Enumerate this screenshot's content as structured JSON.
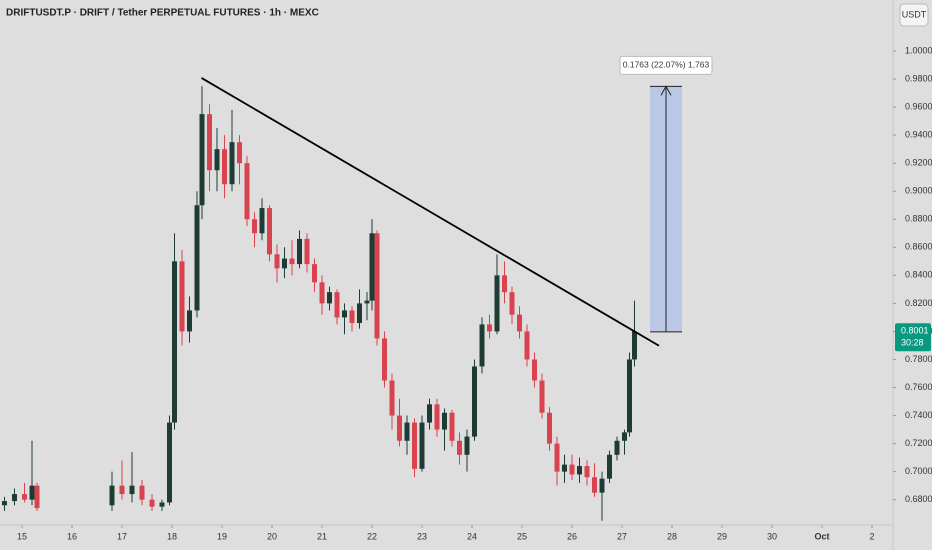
{
  "chart_data": {
    "type": "candlestick",
    "title": "DRIFTUSDT.P · DRIFT / Tether PERPETUAL FUTURES · 1h · MEXC",
    "currency": "USDT",
    "up_color": "#1f3b35",
    "down_color": "#d9434f",
    "x": [
      14.65,
      14.85,
      15.05,
      15.2,
      15.3,
      16.8,
      17.0,
      17.2,
      17.4,
      17.6,
      17.8,
      17.95,
      18.05,
      18.2,
      18.35,
      18.5,
      18.6,
      18.75,
      18.9,
      19.05,
      19.2,
      19.35,
      19.5,
      19.65,
      19.8,
      19.95,
      20.1,
      20.25,
      20.4,
      20.55,
      20.7,
      20.85,
      21.0,
      21.15,
      21.3,
      21.45,
      21.6,
      21.75,
      21.9,
      22.0,
      22.1,
      22.25,
      22.4,
      22.55,
      22.7,
      22.85,
      23.0,
      23.15,
      23.3,
      23.45,
      23.6,
      23.75,
      23.9,
      24.05,
      24.2,
      24.35,
      24.5,
      24.65,
      24.8,
      24.95,
      25.1,
      25.25,
      25.4,
      25.55,
      25.7,
      25.85,
      26.0,
      26.15,
      26.3,
      26.45,
      26.6,
      26.75,
      26.9,
      27.05,
      27.15,
      27.25
    ],
    "open": [
      0.676,
      0.679,
      0.684,
      0.68,
      0.69,
      0.676,
      0.69,
      0.684,
      0.69,
      0.68,
      0.675,
      0.678,
      0.735,
      0.85,
      0.8,
      0.815,
      0.89,
      0.955,
      0.915,
      0.93,
      0.905,
      0.935,
      0.92,
      0.88,
      0.87,
      0.888,
      0.855,
      0.845,
      0.852,
      0.848,
      0.866,
      0.848,
      0.835,
      0.82,
      0.828,
      0.81,
      0.815,
      0.806,
      0.82,
      0.822,
      0.87,
      0.795,
      0.765,
      0.74,
      0.722,
      0.735,
      0.702,
      0.735,
      0.748,
      0.73,
      0.742,
      0.722,
      0.712,
      0.725,
      0.775,
      0.805,
      0.8,
      0.84,
      0.828,
      0.812,
      0.8,
      0.78,
      0.765,
      0.742,
      0.72,
      0.7,
      0.705,
      0.698,
      0.704,
      0.696,
      0.685,
      0.695,
      0.712,
      0.722,
      0.728,
      0.78
    ],
    "high": [
      0.682,
      0.688,
      0.692,
      0.722,
      0.692,
      0.7,
      0.708,
      0.714,
      0.694,
      0.684,
      0.68,
      0.74,
      0.87,
      0.858,
      0.825,
      0.9,
      0.975,
      0.962,
      0.945,
      0.94,
      0.958,
      0.94,
      0.925,
      0.885,
      0.895,
      0.89,
      0.862,
      0.86,
      0.865,
      0.872,
      0.87,
      0.852,
      0.84,
      0.832,
      0.83,
      0.82,
      0.818,
      0.83,
      0.828,
      0.88,
      0.872,
      0.8,
      0.77,
      0.752,
      0.74,
      0.738,
      0.74,
      0.752,
      0.752,
      0.745,
      0.744,
      0.728,
      0.73,
      0.78,
      0.81,
      0.812,
      0.855,
      0.85,
      0.832,
      0.818,
      0.805,
      0.785,
      0.77,
      0.746,
      0.725,
      0.712,
      0.712,
      0.71,
      0.708,
      0.706,
      0.7,
      0.715,
      0.725,
      0.73,
      0.785,
      0.822
    ],
    "low": [
      0.672,
      0.676,
      0.678,
      0.676,
      0.672,
      0.672,
      0.68,
      0.678,
      0.676,
      0.672,
      0.672,
      0.676,
      0.73,
      0.79,
      0.792,
      0.81,
      0.88,
      0.9,
      0.9,
      0.895,
      0.9,
      0.905,
      0.875,
      0.86,
      0.865,
      0.85,
      0.835,
      0.838,
      0.84,
      0.845,
      0.842,
      0.828,
      0.812,
      0.815,
      0.805,
      0.798,
      0.8,
      0.802,
      0.808,
      0.815,
      0.79,
      0.76,
      0.73,
      0.718,
      0.712,
      0.696,
      0.7,
      0.73,
      0.725,
      0.715,
      0.718,
      0.705,
      0.7,
      0.722,
      0.77,
      0.795,
      0.798,
      0.82,
      0.805,
      0.795,
      0.775,
      0.76,
      0.738,
      0.715,
      0.69,
      0.692,
      0.694,
      0.692,
      0.69,
      0.682,
      0.665,
      0.692,
      0.708,
      0.712,
      0.725,
      0.775
    ],
    "close": [
      0.679,
      0.684,
      0.68,
      0.69,
      0.674,
      0.69,
      0.684,
      0.69,
      0.68,
      0.675,
      0.678,
      0.735,
      0.85,
      0.8,
      0.815,
      0.89,
      0.955,
      0.915,
      0.93,
      0.905,
      0.935,
      0.92,
      0.88,
      0.87,
      0.888,
      0.855,
      0.845,
      0.852,
      0.848,
      0.866,
      0.848,
      0.835,
      0.82,
      0.828,
      0.81,
      0.815,
      0.806,
      0.82,
      0.822,
      0.87,
      0.795,
      0.765,
      0.74,
      0.722,
      0.735,
      0.702,
      0.735,
      0.748,
      0.73,
      0.742,
      0.722,
      0.712,
      0.725,
      0.775,
      0.805,
      0.8,
      0.84,
      0.828,
      0.812,
      0.8,
      0.78,
      0.765,
      0.742,
      0.72,
      0.7,
      0.705,
      0.698,
      0.704,
      0.696,
      0.685,
      0.695,
      0.712,
      0.722,
      0.728,
      0.78,
      0.8
    ],
    "xlim": [
      14.56,
      32.42
    ],
    "ylim": [
      0.6655,
      1.0364
    ],
    "xticks": [
      15,
      16,
      17,
      18,
      19,
      20,
      21,
      22,
      23,
      24,
      25,
      26,
      27,
      28,
      29,
      30,
      {
        "value": 31,
        "label": "Oct"
      },
      {
        "value": 32,
        "label": "2"
      }
    ],
    "yticks": [
      {
        "value": 0.68,
        "label": "0.6800"
      },
      {
        "value": 0.7,
        "label": "0.7000"
      },
      {
        "value": 0.72,
        "label": "0.7200"
      },
      {
        "value": 0.74,
        "label": "0.7400"
      },
      {
        "value": 0.76,
        "label": "0.7600"
      },
      {
        "value": 0.78,
        "label": "0.7800"
      },
      {
        "value": 0.8,
        "label": "0.8000"
      },
      {
        "value": 0.82,
        "label": "0.8200"
      },
      {
        "value": 0.84,
        "label": "0.8400"
      },
      {
        "value": 0.86,
        "label": "0.8600"
      },
      {
        "value": 0.88,
        "label": "0.8800"
      },
      {
        "value": 0.9,
        "label": "0.9000"
      },
      {
        "value": 0.92,
        "label": "0.9200"
      },
      {
        "value": 0.94,
        "label": "0.9400"
      },
      {
        "value": 0.96,
        "label": "0.9600"
      },
      {
        "value": 0.98,
        "label": "0.9800"
      },
      {
        "value": 1.0,
        "label": "1.0000"
      }
    ],
    "trendline": {
      "x": [
        18.59,
        27.74
      ],
      "y": [
        0.9808,
        0.7898
      ],
      "color": "#000000"
    },
    "measure": {
      "x": [
        27.56,
        28.2
      ],
      "y": [
        0.7997,
        0.9748
      ],
      "label": "0.1763 (22.07%) 1,763",
      "color": "#b4c4e6"
    },
    "last_price": {
      "value": 0.8001,
      "label": "0.8001",
      "countdown": "30:28",
      "color": "#089981"
    }
  }
}
